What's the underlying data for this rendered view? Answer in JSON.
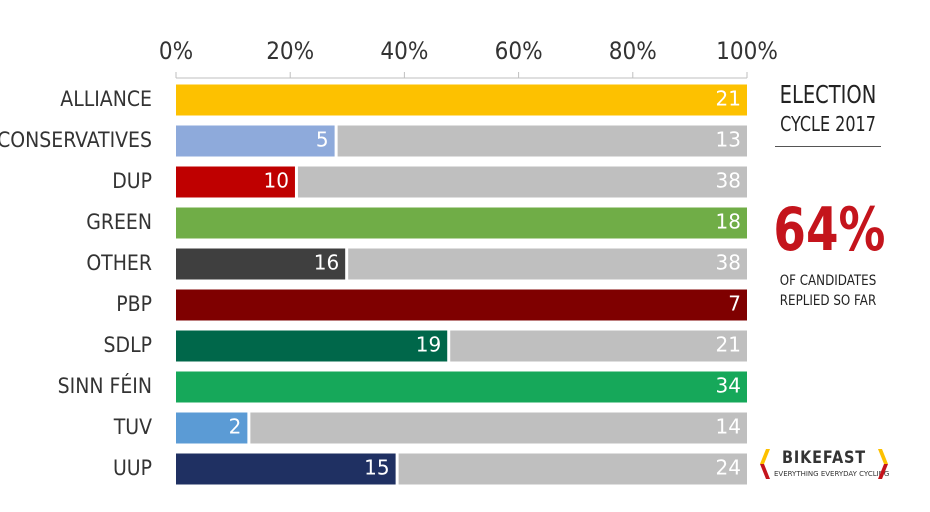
{
  "chart_data": {
    "type": "bar",
    "orientation": "horizontal",
    "stacked": true,
    "normalized_percent": true,
    "xlim": [
      0,
      100
    ],
    "ticks": [
      "0%",
      "20%",
      "40%",
      "60%",
      "80%",
      "100%"
    ],
    "categories": [
      "ALLIANCE",
      "CONSERVATIVES",
      "DUP",
      "GREEN",
      "OTHER",
      "PBP",
      "SDLP",
      "SINN FÉIN",
      "TUV",
      "UUP"
    ],
    "bar_colors": [
      "#fdc100",
      "#8eaadb",
      "#bf0000",
      "#70ad47",
      "#3f3f3f",
      "#7f0000",
      "#00674a",
      "#16a85a",
      "#5b9bd5",
      "#1f3062"
    ],
    "remainder_color": "#bfbfbf",
    "series": [
      {
        "values": [
          21,
          5,
          10,
          18,
          16,
          7,
          19,
          34,
          2,
          15
        ]
      },
      {
        "values": [
          0,
          13,
          38,
          0,
          38,
          0,
          21,
          0,
          14,
          24
        ]
      }
    ],
    "grid": false
  },
  "side_panel": {
    "title": "ELECTION",
    "subtitle": "CYCLE 2017",
    "big_percent": "64%",
    "caption_line1": "OF CANDIDATES",
    "caption_line2": "REPLIED SO FAR"
  },
  "logo": {
    "word": "BIKEFAST",
    "tagline": "EVERYTHING EVERYDAY CYCLING",
    "colors": [
      "#fdc100",
      "#c4141c"
    ]
  }
}
